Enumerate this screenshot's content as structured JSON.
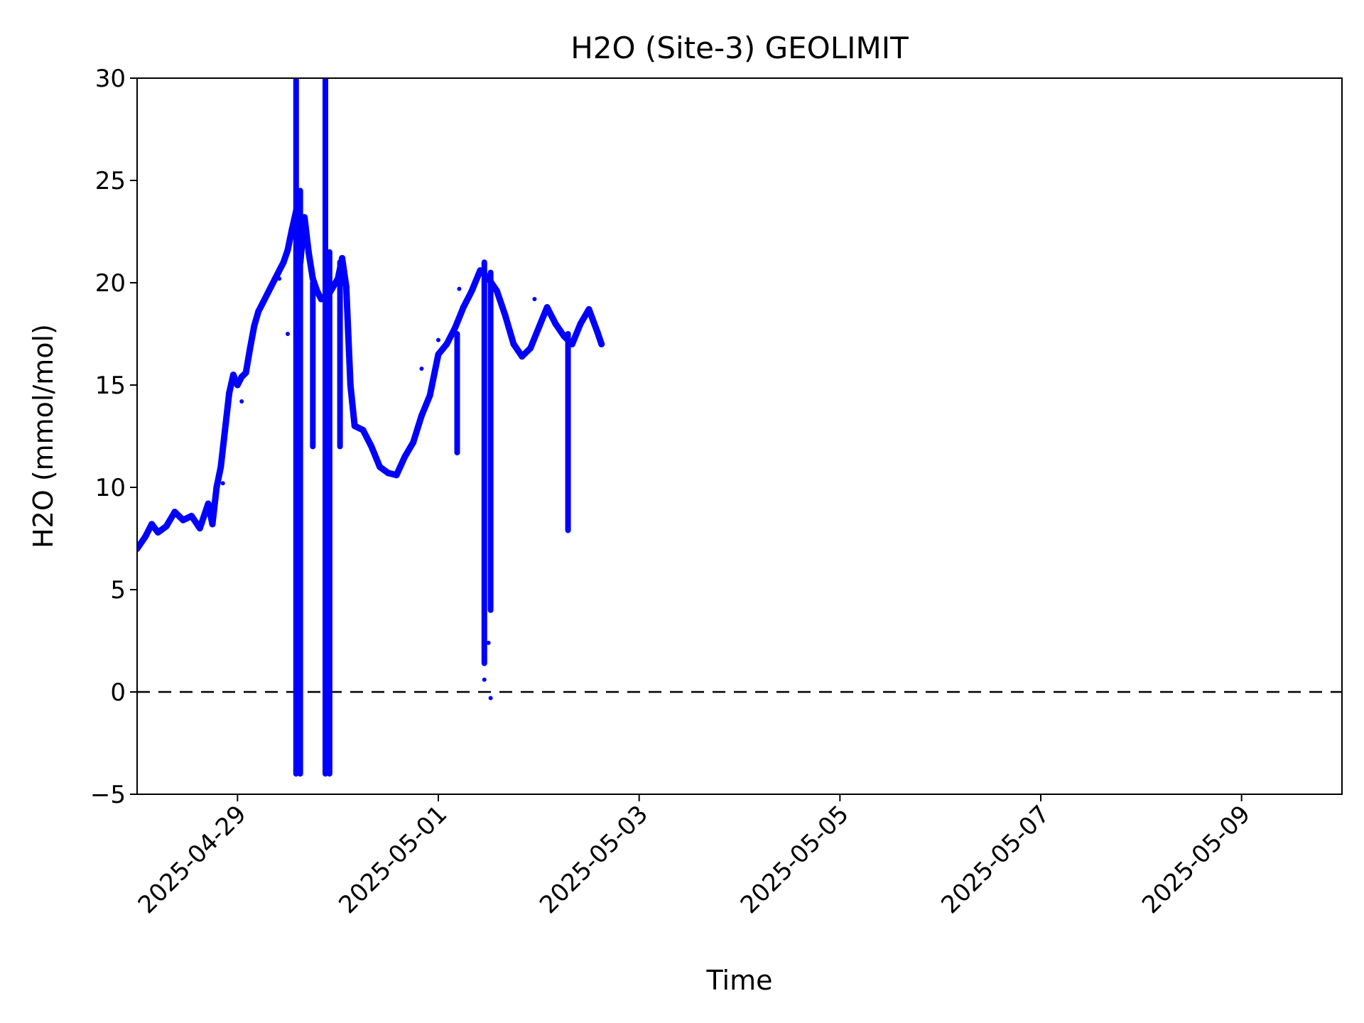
{
  "chart_data": {
    "type": "scatter",
    "title": "H2O (Site-3) GEOLIMIT",
    "xlabel": "Time",
    "ylabel": "H2O (mmol/mol)",
    "xlim": [
      "2025-04-28 00:00",
      "2025-05-10 00:00"
    ],
    "ylim": [
      -5,
      30
    ],
    "x_ticks": [
      "2025-04-29",
      "2025-05-01",
      "2025-05-03",
      "2025-05-05",
      "2025-05-07",
      "2025-05-09"
    ],
    "y_ticks": [
      -5,
      0,
      5,
      10,
      15,
      20,
      25,
      30
    ],
    "grid": false,
    "legend": "none",
    "reference_lines": [
      {
        "y": 0,
        "style": "dashed",
        "color": "#000000"
      }
    ],
    "series": [
      {
        "color": "#0000ff",
        "points": [
          [
            "2025-04-28 00:00",
            7.0
          ],
          [
            "2025-04-28 02:00",
            7.6
          ],
          [
            "2025-04-28 03:30",
            8.2
          ],
          [
            "2025-04-28 05:00",
            7.8
          ],
          [
            "2025-04-28 07:00",
            8.1
          ],
          [
            "2025-04-28 09:00",
            8.8
          ],
          [
            "2025-04-28 11:00",
            8.4
          ],
          [
            "2025-04-28 13:00",
            8.6
          ],
          [
            "2025-04-28 15:00",
            8.0
          ],
          [
            "2025-04-28 17:00",
            9.2
          ],
          [
            "2025-04-28 18:00",
            8.2
          ],
          [
            "2025-04-28 19:00",
            10.0
          ],
          [
            "2025-04-28 20:00",
            11.0
          ],
          [
            "2025-04-28 21:00",
            12.8
          ],
          [
            "2025-04-28 22:00",
            14.6
          ],
          [
            "2025-04-28 23:00",
            15.5
          ],
          [
            "2025-04-29 00:00",
            15.0
          ],
          [
            "2025-04-29 01:00",
            15.4
          ],
          [
            "2025-04-29 02:00",
            15.6
          ],
          [
            "2025-04-29 03:00",
            16.8
          ],
          [
            "2025-04-29 04:00",
            17.9
          ],
          [
            "2025-04-29 05:00",
            18.6
          ],
          [
            "2025-04-29 06:00",
            19.0
          ],
          [
            "2025-04-29 08:00",
            19.8
          ],
          [
            "2025-04-29 09:00",
            20.2
          ],
          [
            "2025-04-29 10:00",
            20.6
          ],
          [
            "2025-04-29 11:00",
            21.0
          ],
          [
            "2025-04-29 12:00",
            21.6
          ],
          [
            "2025-04-29 13:00",
            22.6
          ],
          [
            "2025-04-29 14:00",
            23.5
          ],
          [
            "2025-04-29 15:00",
            21.0
          ],
          [
            "2025-04-29 16:00",
            23.2
          ],
          [
            "2025-04-29 17:00",
            21.5
          ],
          [
            "2025-04-29 18:00",
            20.2
          ],
          [
            "2025-04-29 19:00",
            19.6
          ],
          [
            "2025-04-29 20:00",
            19.2
          ],
          [
            "2025-04-29 22:00",
            19.5
          ],
          [
            "2025-04-30 00:00",
            20.2
          ],
          [
            "2025-04-30 01:00",
            21.2
          ],
          [
            "2025-04-30 02:00",
            19.8
          ],
          [
            "2025-04-30 03:00",
            15.0
          ],
          [
            "2025-04-30 04:00",
            13.0
          ],
          [
            "2025-04-30 06:00",
            12.8
          ],
          [
            "2025-04-30 08:00",
            12.0
          ],
          [
            "2025-04-30 10:00",
            11.0
          ],
          [
            "2025-04-30 12:00",
            10.7
          ],
          [
            "2025-04-30 14:00",
            10.6
          ],
          [
            "2025-04-30 16:00",
            11.5
          ],
          [
            "2025-04-30 18:00",
            12.2
          ],
          [
            "2025-04-30 20:00",
            13.5
          ],
          [
            "2025-04-30 22:00",
            14.5
          ],
          [
            "2025-05-01 00:00",
            16.5
          ],
          [
            "2025-05-01 02:00",
            17.0
          ],
          [
            "2025-05-01 04:00",
            17.8
          ],
          [
            "2025-05-01 06:00",
            18.8
          ],
          [
            "2025-05-01 08:00",
            19.6
          ],
          [
            "2025-05-01 10:00",
            20.6
          ],
          [
            "2025-05-01 12:00",
            20.2
          ],
          [
            "2025-05-01 14:00",
            19.6
          ],
          [
            "2025-05-01 16:00",
            18.4
          ],
          [
            "2025-05-01 18:00",
            17.0
          ],
          [
            "2025-05-01 20:00",
            16.4
          ],
          [
            "2025-05-01 22:00",
            16.8
          ],
          [
            "2025-05-02 00:00",
            17.8
          ],
          [
            "2025-05-02 02:00",
            18.8
          ],
          [
            "2025-05-02 04:00",
            18.0
          ],
          [
            "2025-05-02 06:00",
            17.4
          ],
          [
            "2025-05-02 08:00",
            17.0
          ],
          [
            "2025-05-02 10:00",
            18.0
          ],
          [
            "2025-05-02 12:00",
            18.7
          ],
          [
            "2025-05-02 14:00",
            17.6
          ],
          [
            "2025-05-02 15:00",
            17.0
          ]
        ],
        "spikes": [
          {
            "x": "2025-04-29 14:00",
            "low": -4.0,
            "high": 30.0
          },
          {
            "x": "2025-04-29 15:00",
            "low": -4.0,
            "high": 24.5
          },
          {
            "x": "2025-04-29 18:00",
            "low": 12.0,
            "high": 20.0
          },
          {
            "x": "2025-04-29 21:00",
            "low": -4.0,
            "high": 30.0
          },
          {
            "x": "2025-04-29 22:00",
            "low": -4.0,
            "high": 21.5
          },
          {
            "x": "2025-04-30 00:30",
            "low": 12.0,
            "high": 21.0
          },
          {
            "x": "2025-05-01 04:30",
            "low": 11.7,
            "high": 17.5
          },
          {
            "x": "2025-05-01 11:00",
            "low": 1.4,
            "high": 21.0
          },
          {
            "x": "2025-05-01 12:30",
            "low": 4.0,
            "high": 20.5
          },
          {
            "x": "2025-05-02 07:00",
            "low": 7.9,
            "high": 17.5
          }
        ],
        "outliers": [
          [
            "2025-04-28 20:30",
            10.2
          ],
          [
            "2025-04-29 01:00",
            14.2
          ],
          [
            "2025-04-29 10:00",
            20.2
          ],
          [
            "2025-04-29 12:00",
            17.5
          ],
          [
            "2025-04-30 20:00",
            15.8
          ],
          [
            "2025-05-01 00:00",
            17.2
          ],
          [
            "2025-05-01 05:00",
            19.7
          ],
          [
            "2025-05-01 11:00",
            0.6
          ],
          [
            "2025-05-01 12:00",
            2.4
          ],
          [
            "2025-05-01 12:30",
            -0.3
          ],
          [
            "2025-05-01 23:00",
            19.2
          ]
        ]
      }
    ]
  }
}
